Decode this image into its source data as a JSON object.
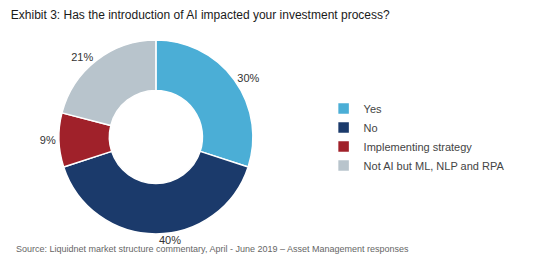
{
  "chart_data": {
    "type": "pie",
    "title": "Exhibit 3: Has the introduction of AI impacted your investment process?",
    "annotations": [
      "Source: Liquidnet market structure commentary, April - June 2019 – Asset Management responses"
    ],
    "categories": [
      "Yes",
      "No",
      "Implementing strategy",
      "Not AI but ML, NLP and RPA"
    ],
    "values": [
      30,
      40,
      9,
      21
    ],
    "value_labels": [
      "30%",
      "40%",
      "9%",
      "21%"
    ],
    "colors": [
      "#4BAED6",
      "#1B3A6B",
      "#A0212A",
      "#B8C4CC"
    ],
    "data_labels": true,
    "legend": "right"
  }
}
